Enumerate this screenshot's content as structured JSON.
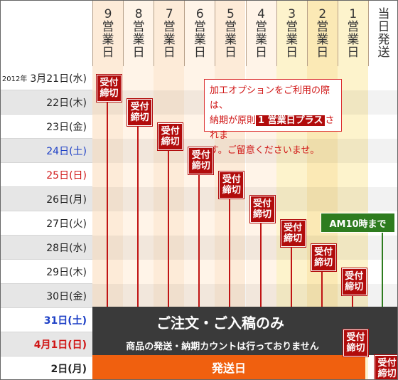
{
  "headers": [
    {
      "num": "9",
      "label": [
        "営",
        "業",
        "日"
      ]
    },
    {
      "num": "8",
      "label": [
        "営",
        "業",
        "日"
      ]
    },
    {
      "num": "7",
      "label": [
        "営",
        "業",
        "日"
      ]
    },
    {
      "num": "6",
      "label": [
        "営",
        "業",
        "日"
      ]
    },
    {
      "num": "5",
      "label": [
        "営",
        "業",
        "日"
      ]
    },
    {
      "num": "4",
      "label": [
        "営",
        "業",
        "日"
      ]
    },
    {
      "num": "3",
      "label": [
        "営",
        "業",
        "日"
      ]
    },
    {
      "num": "2",
      "label": [
        "営",
        "業",
        "日"
      ]
    },
    {
      "num": "1",
      "label": [
        "営",
        "業",
        "日"
      ]
    },
    {
      "num": "当",
      "label": [
        "日",
        "発",
        "送"
      ]
    }
  ],
  "year_label": "2012年",
  "dates": [
    {
      "text": "3月21日(水)",
      "color": "normal"
    },
    {
      "text": "22日(木)",
      "color": "normal"
    },
    {
      "text": "23日(金)",
      "color": "normal"
    },
    {
      "text": "24日(土)",
      "color": "blue"
    },
    {
      "text": "25日(日)",
      "color": "red"
    },
    {
      "text": "26日(月)",
      "color": "normal"
    },
    {
      "text": "27日(火)",
      "color": "normal"
    },
    {
      "text": "28日(水)",
      "color": "normal"
    },
    {
      "text": "29日(木)",
      "color": "normal"
    },
    {
      "text": "30日(金)",
      "color": "normal"
    },
    {
      "text": "31日(土)",
      "color": "blue"
    },
    {
      "text": "4月1日(日)",
      "color": "red"
    },
    {
      "text": "2日(月)",
      "color": "normal"
    }
  ],
  "badge": {
    "line1": "受付",
    "line2": "締切"
  },
  "note": {
    "line1": "加工オプションをご利用の際は、",
    "line2_pre": "納期が原則",
    "line2_hl": "1 営業日プラス",
    "line2_post": "されま",
    "line3": "す。ご留意くださいませ。"
  },
  "am_label": "AM10時まで",
  "weekend_title": "ご注文・ご入稿のみ",
  "weekend_sub": "商品の発送・納期カウントは行っておりません",
  "ship_label": "発送日",
  "colors": {
    "badge": "#b10c0c",
    "line": "#c01414",
    "green": "#2e7c1f",
    "orange": "#f0600f",
    "dark": "#3a3a3a"
  }
}
